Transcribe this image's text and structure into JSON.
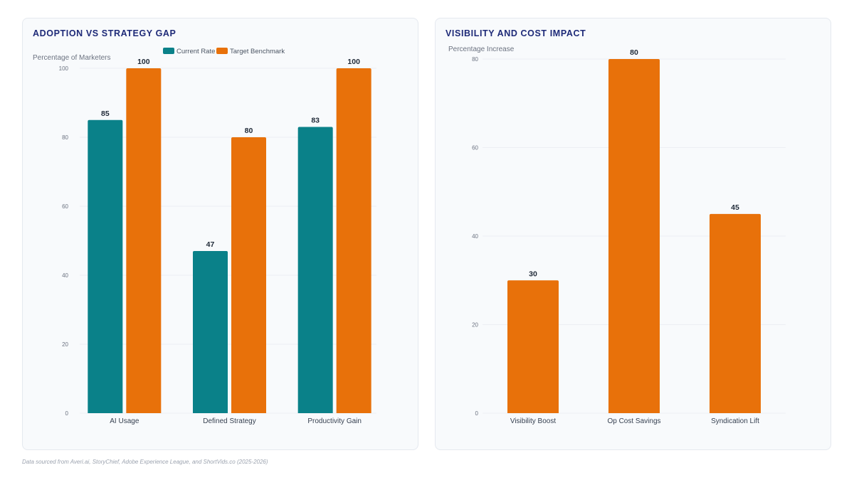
{
  "colors": {
    "current": "#0a8189",
    "target": "#e8710a",
    "grid": "#eceff3"
  },
  "left": {
    "title": "ADOPTION VS STRATEGY GAP",
    "axis_title": "Percentage of Marketers",
    "legend": {
      "current": "Current Rate",
      "target": "Target Benchmark"
    }
  },
  "right": {
    "title": "VISIBILITY AND COST IMPACT",
    "axis_title": "Percentage Increase"
  },
  "footnote": "Data sourced from Averi.ai, StoryChief, Adobe Experience League, and ShortVids.co (2025-2026)",
  "chart_data": [
    {
      "type": "bar",
      "title": "ADOPTION VS STRATEGY GAP",
      "ylabel": "Percentage of Marketers",
      "categories": [
        "AI Usage",
        "Defined Strategy",
        "Productivity Gain"
      ],
      "series": [
        {
          "name": "Current Rate",
          "values": [
            85,
            47,
            83
          ]
        },
        {
          "name": "Target Benchmark",
          "values": [
            100,
            80,
            100
          ]
        }
      ],
      "ylim": [
        0,
        100
      ],
      "yticks": [
        0,
        20,
        40,
        60,
        80,
        100
      ],
      "legend": "top-center",
      "grid": true
    },
    {
      "type": "bar",
      "title": "VISIBILITY AND COST IMPACT",
      "ylabel": "Percentage Increase",
      "categories": [
        "Visibility Boost",
        "Op Cost Savings",
        "Syndication Lift"
      ],
      "values": [
        30,
        80,
        45
      ],
      "ylim": [
        0,
        80
      ],
      "yticks": [
        0,
        20,
        40,
        60,
        80
      ],
      "grid": true
    }
  ]
}
